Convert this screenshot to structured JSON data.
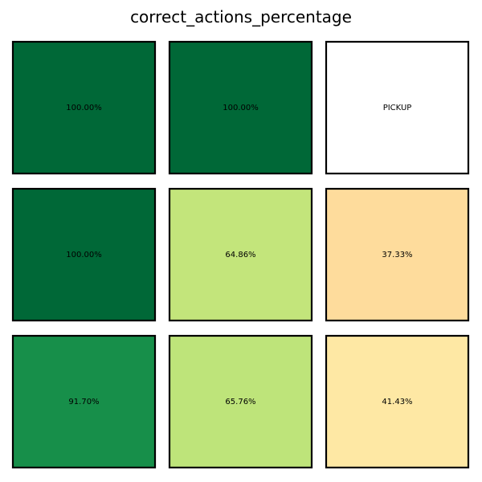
{
  "chart_data": {
    "type": "heatmap",
    "title": "correct_actions_percentage",
    "rows": 3,
    "cols": 3,
    "cells": [
      {
        "row": 0,
        "col": 0,
        "value": 100.0,
        "label": "100.00%",
        "color": "#006837"
      },
      {
        "row": 0,
        "col": 1,
        "value": 100.0,
        "label": "100.00%",
        "color": "#006837"
      },
      {
        "row": 0,
        "col": 2,
        "value": null,
        "label": "PICKUP",
        "color": "#ffffff"
      },
      {
        "row": 1,
        "col": 0,
        "value": 100.0,
        "label": "100.00%",
        "color": "#006837"
      },
      {
        "row": 1,
        "col": 1,
        "value": 64.86,
        "label": "64.86%",
        "color": "#c3e57b"
      },
      {
        "row": 1,
        "col": 2,
        "value": 37.33,
        "label": "37.33%",
        "color": "#fedc9c"
      },
      {
        "row": 2,
        "col": 0,
        "value": 91.7,
        "label": "91.70%",
        "color": "#178f4a"
      },
      {
        "row": 2,
        "col": 1,
        "value": 65.76,
        "label": "65.76%",
        "color": "#bee47a"
      },
      {
        "row": 2,
        "col": 2,
        "value": 41.43,
        "label": "41.43%",
        "color": "#fee8a4"
      }
    ]
  }
}
